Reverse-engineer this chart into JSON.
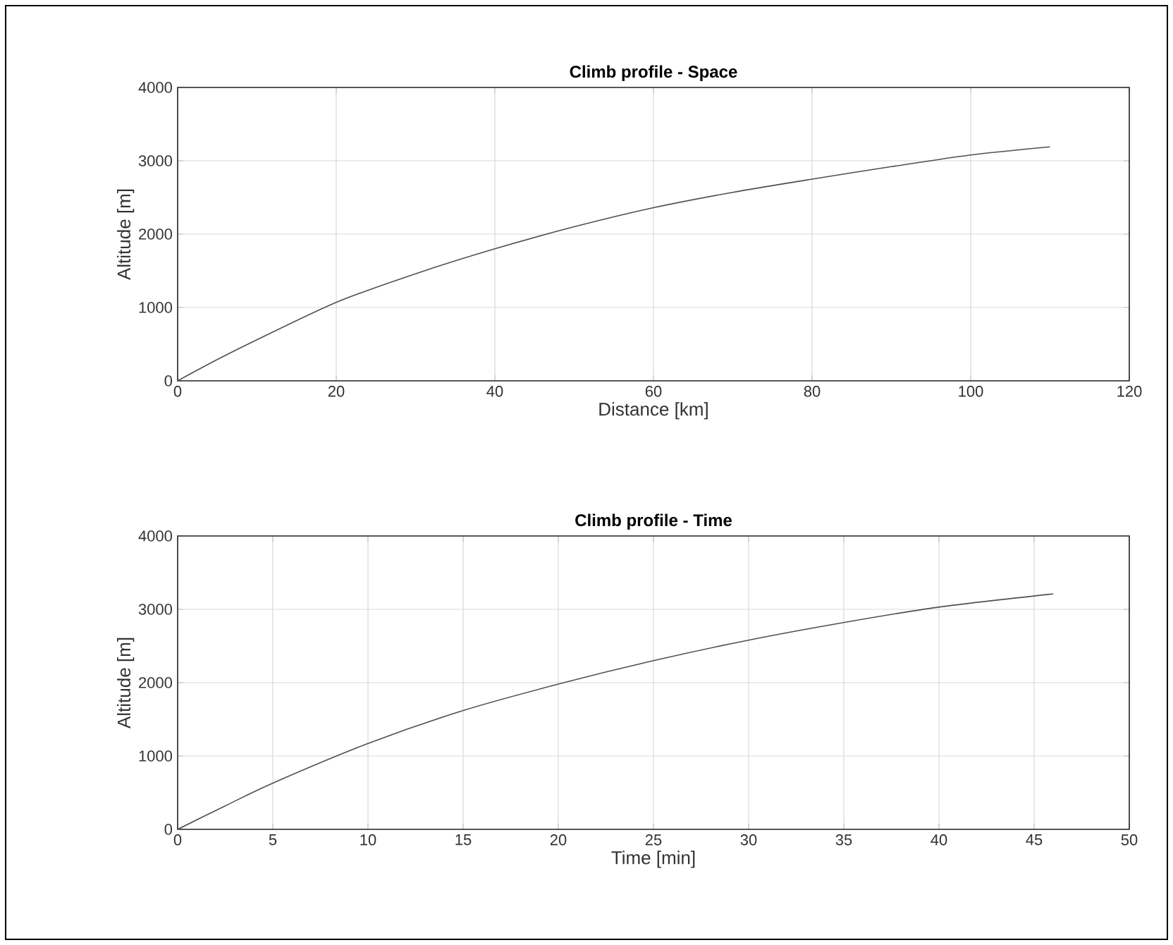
{
  "chart_data": [
    {
      "type": "line",
      "title": "Climb profile - Space",
      "xlabel": "Distance [km]",
      "ylabel": "Altitude [m]",
      "x": [
        0,
        5,
        10,
        20,
        30,
        40,
        50,
        60,
        70,
        80,
        90,
        100,
        110
      ],
      "series": [
        {
          "color": "#505050",
          "values": [
            0,
            290,
            560,
            1070,
            1460,
            1800,
            2100,
            2360,
            2570,
            2750,
            2920,
            3080,
            3190
          ]
        }
      ],
      "xlim": [
        0,
        120
      ],
      "xticks": [
        0,
        20,
        40,
        60,
        80,
        100,
        120
      ],
      "ylim": [
        0,
        4000
      ],
      "yticks": [
        0,
        1000,
        2000,
        3000,
        4000
      ],
      "grid": true
    },
    {
      "type": "line",
      "title": "Climb profile - Time",
      "xlabel": "Time [min]",
      "ylabel": "Altitude [m]",
      "x": [
        0,
        2.5,
        5,
        10,
        15,
        20,
        25,
        30,
        35,
        40,
        46
      ],
      "series": [
        {
          "color": "#505050",
          "values": [
            0,
            320,
            630,
            1170,
            1620,
            1980,
            2300,
            2580,
            2820,
            3030,
            3210
          ]
        }
      ],
      "xlim": [
        0,
        50
      ],
      "xticks": [
        0,
        5,
        10,
        15,
        20,
        25,
        30,
        35,
        40,
        45,
        50
      ],
      "ylim": [
        0,
        4000
      ],
      "yticks": [
        0,
        1000,
        2000,
        3000,
        4000
      ],
      "grid": true
    }
  ]
}
